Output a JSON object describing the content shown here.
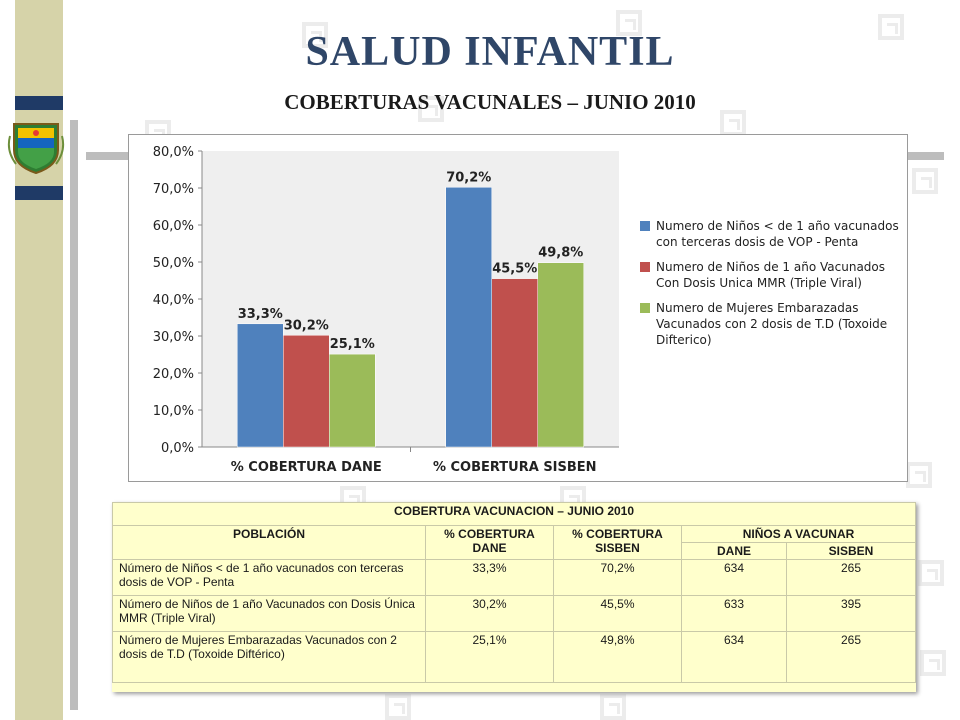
{
  "header": {
    "title": "SALUD INFANTIL",
    "subtitle": "COBERTURAS VACUNALES – JUNIO 2010"
  },
  "colors": {
    "series1": "#4f81bd",
    "series2": "#c0504d",
    "series3": "#9bbb59",
    "title": "#2f4668",
    "table_bg": "#ffffcc",
    "strip": "#d6d3a9",
    "strip_accent": "#1f3a66"
  },
  "chart_data": {
    "type": "bar",
    "categories": [
      "% COBERTURA DANE",
      "% COBERTURA SISBEN"
    ],
    "series": [
      {
        "name": "Numero de Niños < de 1 año vacunados  con terceras dosis de VOP -  Penta",
        "values": [
          33.3,
          70.2
        ],
        "labels": [
          "33,3%",
          "70,2%"
        ]
      },
      {
        "name": "Numero de Niños de 1 año Vacunados Con Dosis Unica MMR (Triple Viral)",
        "values": [
          30.2,
          45.5
        ],
        "labels": [
          "30,2%",
          "45,5%"
        ]
      },
      {
        "name": "Numero de Mujeres Embarazadas Vacunados con 2 dosis de T.D (Toxoide Difterico)",
        "values": [
          25.1,
          49.8
        ],
        "labels": [
          "25,1%",
          "49,8%"
        ]
      }
    ],
    "yticks": [
      "0,0%",
      "10,0%",
      "20,0%",
      "30,0%",
      "40,0%",
      "50,0%",
      "60,0%",
      "70,0%",
      "80,0%"
    ],
    "ylim": [
      0,
      80
    ],
    "legend": "right",
    "grid": false
  },
  "table": {
    "title": "COBERTURA  VACUNACION – JUNIO 2010",
    "headers": {
      "poblacion": "POBLACIÓN",
      "cob_dane": "% COBERTURA DANE",
      "cob_sisben": "% COBERTURA SISBEN",
      "ninos": "NIÑOS A VACUNAR",
      "dane": "DANE",
      "sisben": "SISBEN"
    },
    "rows": [
      {
        "poblacion": "Número de Niños < de 1 año vacunados  con terceras dosis de VOP -  Penta",
        "cob_dane": "33,3%",
        "cob_sisben": "70,2%",
        "dane": "634",
        "sisben": "265"
      },
      {
        "poblacion": "Número de Niños de 1 año  Vacunados con Dosis Única MMR (Triple Viral)",
        "cob_dane": "30,2%",
        "cob_sisben": "45,5%",
        "dane": "633",
        "sisben": "395"
      },
      {
        "poblacion": "Número de Mujeres Embarazadas Vacunados con 2 dosis de T.D (Toxoide Diftérico)",
        "cob_dane": "25,1%",
        "cob_sisben": "49,8%",
        "dane": "634",
        "sisben": "265"
      }
    ]
  }
}
